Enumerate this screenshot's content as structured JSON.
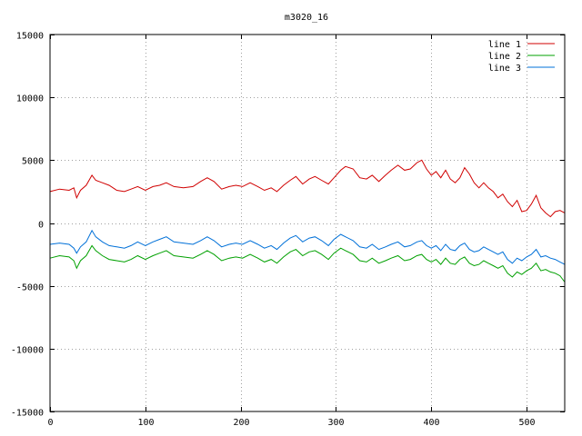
{
  "chart_data": {
    "type": "line",
    "title": "m3020_16",
    "xlabel": "",
    "ylabel": "",
    "xlim": [
      0,
      540
    ],
    "ylim": [
      -15000,
      15000
    ],
    "xticks": [
      0,
      100,
      200,
      300,
      400,
      500
    ],
    "yticks": [
      -15000,
      -10000,
      -5000,
      0,
      5000,
      10000,
      15000
    ],
    "xtick_labels": [
      "0",
      "100",
      "200",
      "300",
      "400",
      "500"
    ],
    "ytick_labels": [
      "-15000",
      "-10000",
      "-5000",
      "0",
      "5000",
      "10000",
      "15000"
    ],
    "grid": true,
    "legend_position": "top-right",
    "series": [
      {
        "name": "line 1",
        "color": "#d00000",
        "x": [
          0,
          10,
          20,
          25,
          28,
          32,
          38,
          44,
          48,
          55,
          62,
          70,
          78,
          85,
          92,
          100,
          108,
          115,
          122,
          130,
          140,
          150,
          158,
          165,
          172,
          180,
          188,
          195,
          202,
          210,
          218,
          225,
          232,
          238,
          245,
          252,
          258,
          265,
          272,
          278,
          285,
          292,
          298,
          305,
          310,
          318,
          325,
          332,
          338,
          345,
          352,
          358,
          365,
          372,
          378,
          385,
          390,
          395,
          400,
          405,
          410,
          415,
          420,
          425,
          430,
          435,
          440,
          445,
          450,
          455,
          460,
          465,
          470,
          475,
          480,
          485,
          490,
          495,
          500,
          505,
          510,
          515,
          520,
          525,
          530,
          535,
          540
        ],
        "values": [
          2500,
          2700,
          2600,
          2800,
          2000,
          2600,
          3000,
          3800,
          3400,
          3200,
          3000,
          2600,
          2500,
          2700,
          2900,
          2600,
          2900,
          3000,
          3200,
          2900,
          2800,
          2900,
          3300,
          3600,
          3300,
          2700,
          2900,
          3000,
          2900,
          3200,
          2900,
          2600,
          2800,
          2500,
          3000,
          3400,
          3700,
          3100,
          3500,
          3700,
          3400,
          3100,
          3600,
          4200,
          4500,
          4300,
          3600,
          3500,
          3800,
          3300,
          3800,
          4200,
          4600,
          4200,
          4300,
          4800,
          5000,
          4300,
          3800,
          4100,
          3600,
          4200,
          3500,
          3200,
          3600,
          4400,
          3900,
          3200,
          2800,
          3200,
          2800,
          2500,
          2000,
          2300,
          1700,
          1300,
          1800,
          900,
          1000,
          1500,
          2200,
          1200,
          800,
          500,
          900,
          1000,
          800
        ]
      },
      {
        "name": "line 2",
        "color": "#00a000",
        "x": [
          0,
          10,
          20,
          25,
          28,
          32,
          38,
          44,
          48,
          55,
          62,
          70,
          78,
          85,
          92,
          100,
          108,
          115,
          122,
          130,
          140,
          150,
          158,
          165,
          172,
          180,
          188,
          195,
          202,
          210,
          218,
          225,
          232,
          238,
          245,
          252,
          258,
          265,
          272,
          278,
          285,
          292,
          298,
          305,
          310,
          318,
          325,
          332,
          338,
          345,
          352,
          358,
          365,
          372,
          378,
          385,
          390,
          395,
          400,
          405,
          410,
          415,
          420,
          425,
          430,
          435,
          440,
          445,
          450,
          455,
          460,
          465,
          470,
          475,
          480,
          485,
          490,
          495,
          500,
          505,
          510,
          515,
          520,
          525,
          530,
          535,
          540
        ],
        "values": [
          -2800,
          -2600,
          -2700,
          -3000,
          -3600,
          -3000,
          -2600,
          -1800,
          -2200,
          -2600,
          -2900,
          -3000,
          -3100,
          -2900,
          -2600,
          -2900,
          -2600,
          -2400,
          -2200,
          -2600,
          -2700,
          -2800,
          -2500,
          -2200,
          -2500,
          -3000,
          -2800,
          -2700,
          -2800,
          -2500,
          -2800,
          -3100,
          -2900,
          -3200,
          -2700,
          -2300,
          -2100,
          -2600,
          -2300,
          -2200,
          -2500,
          -2900,
          -2400,
          -2000,
          -2200,
          -2500,
          -3000,
          -3100,
          -2800,
          -3200,
          -3000,
          -2800,
          -2600,
          -3000,
          -2900,
          -2600,
          -2500,
          -2900,
          -3100,
          -2900,
          -3300,
          -2800,
          -3200,
          -3300,
          -2900,
          -2700,
          -3200,
          -3400,
          -3300,
          -3000,
          -3200,
          -3400,
          -3600,
          -3400,
          -4000,
          -4300,
          -3900,
          -4100,
          -3800,
          -3600,
          -3200,
          -3800,
          -3700,
          -3900,
          -4000,
          -4200,
          -4700
        ]
      },
      {
        "name": "line 3",
        "color": "#0070d8",
        "x": [
          0,
          10,
          20,
          25,
          28,
          32,
          38,
          44,
          48,
          55,
          62,
          70,
          78,
          85,
          92,
          100,
          108,
          115,
          122,
          130,
          140,
          150,
          158,
          165,
          172,
          180,
          188,
          195,
          202,
          210,
          218,
          225,
          232,
          238,
          245,
          252,
          258,
          265,
          272,
          278,
          285,
          292,
          298,
          305,
          310,
          318,
          325,
          332,
          338,
          345,
          352,
          358,
          365,
          372,
          378,
          385,
          390,
          395,
          400,
          405,
          410,
          415,
          420,
          425,
          430,
          435,
          440,
          445,
          450,
          455,
          460,
          465,
          470,
          475,
          480,
          485,
          490,
          495,
          500,
          505,
          510,
          515,
          520,
          525,
          530,
          535,
          540
        ],
        "values": [
          -1700,
          -1600,
          -1700,
          -2000,
          -2400,
          -1900,
          -1500,
          -600,
          -1100,
          -1500,
          -1800,
          -1900,
          -2000,
          -1800,
          -1500,
          -1800,
          -1500,
          -1300,
          -1100,
          -1500,
          -1600,
          -1700,
          -1400,
          -1100,
          -1400,
          -1900,
          -1700,
          -1600,
          -1700,
          -1400,
          -1700,
          -2000,
          -1800,
          -2100,
          -1600,
          -1200,
          -1000,
          -1500,
          -1200,
          -1100,
          -1400,
          -1800,
          -1300,
          -900,
          -1100,
          -1400,
          -1900,
          -2000,
          -1700,
          -2100,
          -1900,
          -1700,
          -1500,
          -1900,
          -1800,
          -1500,
          -1400,
          -1800,
          -2000,
          -1800,
          -2200,
          -1700,
          -2100,
          -2200,
          -1800,
          -1600,
          -2100,
          -2300,
          -2200,
          -1900,
          -2100,
          -2300,
          -2500,
          -2300,
          -2900,
          -3200,
          -2800,
          -3000,
          -2700,
          -2500,
          -2100,
          -2700,
          -2600,
          -2800,
          -2900,
          -3100,
          -3300
        ]
      }
    ]
  }
}
